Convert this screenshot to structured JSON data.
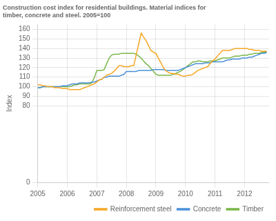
{
  "chart_data": {
    "type": "line",
    "title": [
      "Construction cost index for residential buildings. Material indices for",
      "timber, concrete and steel. 2005=100"
    ],
    "ylabel": "Index",
    "x": [
      2005.0,
      2005.08,
      2005.17,
      2005.25,
      2005.33,
      2005.42,
      2005.5,
      2005.58,
      2005.67,
      2005.75,
      2005.83,
      2005.92,
      2006.0,
      2006.08,
      2006.17,
      2006.25,
      2006.33,
      2006.42,
      2006.5,
      2006.58,
      2006.67,
      2006.75,
      2006.83,
      2006.92,
      2007.0,
      2007.08,
      2007.17,
      2007.25,
      2007.33,
      2007.42,
      2007.5,
      2007.58,
      2007.67,
      2007.75,
      2007.83,
      2007.92,
      2008.0,
      2008.08,
      2008.17,
      2008.25,
      2008.33,
      2008.42,
      2008.5,
      2008.58,
      2008.67,
      2008.75,
      2008.83,
      2008.92,
      2009.0,
      2009.08,
      2009.17,
      2009.25,
      2009.33,
      2009.42,
      2009.5,
      2009.58,
      2009.67,
      2009.75,
      2009.83,
      2009.92,
      2010.0,
      2010.08,
      2010.17,
      2010.25,
      2010.33,
      2010.42,
      2010.5,
      2010.58,
      2010.67,
      2010.75,
      2010.83,
      2010.92,
      2011.0,
      2011.08,
      2011.17,
      2011.25,
      2011.33,
      2011.42,
      2011.5,
      2011.58,
      2011.67,
      2011.75,
      2011.83,
      2011.92,
      2012.0,
      2012.08,
      2012.17,
      2012.25,
      2012.33,
      2012.42,
      2012.5,
      2012.58,
      2012.67,
      2012.75
    ],
    "series": [
      {
        "name": "Reinforcement steel",
        "color": "#f5a623",
        "values": [
          102,
          102,
          101,
          101,
          100,
          100,
          100,
          99,
          99,
          99,
          98,
          98,
          98,
          97,
          97,
          97,
          97,
          97,
          98,
          99,
          100,
          101,
          102,
          103,
          105,
          107,
          108,
          110,
          112,
          113,
          114,
          116,
          119,
          122,
          122,
          121,
          121,
          121,
          122,
          122,
          133,
          145,
          156,
          152,
          148,
          143,
          138,
          136,
          135,
          130,
          125,
          120,
          117,
          115,
          114,
          114,
          113,
          113,
          112,
          111,
          111,
          112,
          112,
          113,
          115,
          117,
          118,
          119,
          120,
          121,
          124,
          127,
          129,
          132,
          135,
          138,
          138,
          138,
          138,
          139,
          140,
          140,
          140,
          140,
          140,
          140,
          139,
          139,
          138,
          138,
          138,
          137,
          137,
          137
        ]
      },
      {
        "name": "Concrete",
        "color": "#4a90d9",
        "values": [
          99,
          99,
          100,
          100,
          100,
          100,
          100,
          100,
          100,
          100,
          101,
          101,
          101,
          102,
          103,
          103,
          103,
          104,
          104,
          104,
          104,
          104,
          105,
          105,
          106,
          107,
          108,
          110,
          110,
          111,
          111,
          111,
          111,
          111,
          112,
          113,
          116,
          116,
          116,
          116,
          116,
          117,
          117,
          117,
          117,
          117,
          117,
          118,
          118,
          118,
          118,
          118,
          117,
          117,
          117,
          117,
          117,
          117,
          118,
          119,
          120,
          121,
          122,
          123,
          124,
          124,
          124,
          124,
          125,
          125,
          125,
          126,
          126,
          126,
          126,
          126,
          127,
          128,
          128,
          129,
          129,
          129,
          129,
          130,
          130,
          130,
          131,
          131,
          132,
          133,
          134,
          135,
          135,
          136
        ]
      },
      {
        "name": "Timber",
        "color": "#7ab648",
        "values": [
          99,
          99,
          100,
          100,
          100,
          100,
          100,
          100,
          100,
          100,
          100,
          100,
          100,
          100,
          101,
          102,
          102,
          103,
          103,
          103,
          103,
          103,
          104,
          110,
          117,
          117,
          117,
          118,
          124,
          130,
          133,
          134,
          134,
          134,
          135,
          135,
          135,
          135,
          135,
          135,
          134,
          132,
          130,
          127,
          124,
          122,
          119,
          116,
          113,
          112,
          112,
          112,
          112,
          112,
          112,
          113,
          114,
          115,
          116,
          118,
          120,
          122,
          124,
          126,
          126,
          127,
          127,
          126,
          126,
          126,
          127,
          127,
          127,
          128,
          129,
          130,
          130,
          130,
          130,
          131,
          132,
          132,
          132,
          133,
          133,
          133,
          134,
          134,
          135,
          135,
          135,
          136,
          136,
          136
        ]
      }
    ],
    "xlim": [
      2005.0,
      2012.83
    ],
    "xticks": [
      2005,
      2006,
      2007,
      2008,
      2009,
      2010,
      2011,
      2012
    ],
    "ylim": [
      0,
      165
    ],
    "yticks": [
      0,
      80,
      90,
      100,
      110,
      120,
      130,
      140,
      150,
      160
    ],
    "grid": true,
    "legend": "lower right"
  }
}
